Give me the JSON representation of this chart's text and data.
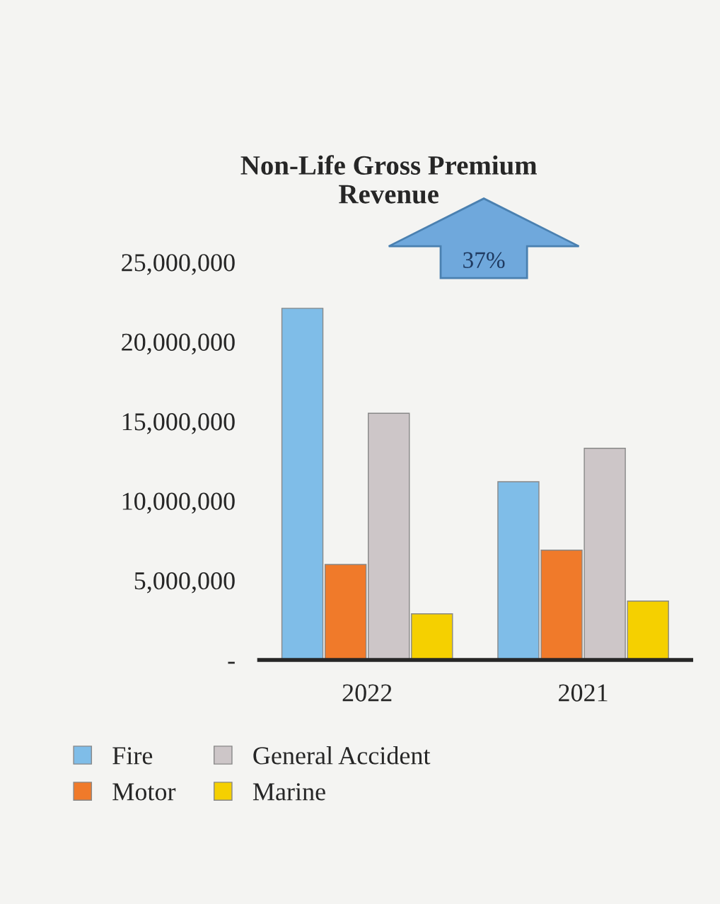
{
  "chart_data": {
    "type": "bar",
    "title": "Non-Life Gross Premium\nRevenue",
    "categories": [
      "2022",
      "2021"
    ],
    "series": [
      {
        "name": "Fire",
        "color": "#7fbde8",
        "values": [
          22100000,
          11200000
        ]
      },
      {
        "name": "Motor",
        "color": "#f07a2a",
        "values": [
          6000000,
          6900000
        ]
      },
      {
        "name": "General Accident",
        "color": "#cdc6c8",
        "values": [
          15500000,
          13300000
        ]
      },
      {
        "name": "Marine",
        "color": "#f5d000",
        "values": [
          2900000,
          3700000
        ]
      }
    ],
    "ylim": [
      0,
      25000000
    ],
    "yticks": [
      {
        "value": 0,
        "label": "-"
      },
      {
        "value": 5000000,
        "label": "5,000,000"
      },
      {
        "value": 10000000,
        "label": "10,000,000"
      },
      {
        "value": 15000000,
        "label": "15,000,000"
      },
      {
        "value": 20000000,
        "label": "20,000,000"
      },
      {
        "value": 25000000,
        "label": "25,000,000"
      }
    ],
    "annotations": [
      "37%"
    ],
    "legend": "bottom"
  }
}
